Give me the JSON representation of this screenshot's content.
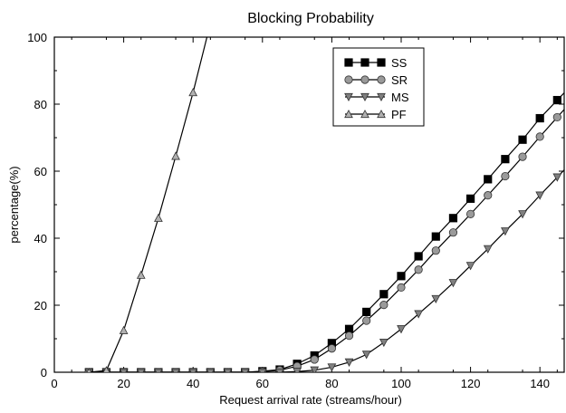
{
  "chart_data": {
    "type": "line",
    "title": "Blocking Probability",
    "xlabel": "Request arrival rate (streams/hour)",
    "ylabel": "percentage(%)",
    "xlim": [
      0,
      147
    ],
    "ylim": [
      0,
      100
    ],
    "xticks": [
      0,
      20,
      40,
      60,
      80,
      100,
      120,
      140
    ],
    "yticks": [
      0,
      20,
      40,
      60,
      80,
      100
    ],
    "grid": false,
    "legend_position": "top-center-right",
    "x": [
      10,
      15,
      20,
      25,
      30,
      35,
      40,
      45,
      50,
      55,
      60,
      65,
      70,
      75,
      80,
      85,
      90,
      95,
      100,
      105,
      110,
      115,
      120,
      125,
      130,
      135,
      140,
      145
    ],
    "series": [
      {
        "name": "SS",
        "marker": "square",
        "fill": "#000000",
        "values": [
          0,
          0,
          0,
          0,
          0,
          0,
          0,
          0,
          0,
          0,
          0.3,
          0.8,
          2.5,
          5,
          8.7,
          12.9,
          18,
          23.3,
          28.7,
          34.6,
          40.5,
          46,
          51.8,
          57.6,
          63.6,
          69.4,
          75.8,
          81.2
        ]
      },
      {
        "name": "SR",
        "marker": "circle",
        "fill": "#9a9a9a",
        "values": [
          0,
          0,
          0,
          0,
          0,
          0,
          0,
          0,
          0,
          0,
          0.2,
          0.6,
          1.8,
          3.8,
          7.1,
          10.9,
          15.4,
          20.1,
          25.3,
          30.6,
          36.3,
          41.7,
          47.2,
          52.8,
          58.5,
          64.3,
          70.3,
          76.1
        ]
      },
      {
        "name": "MS",
        "marker": "triangle-down",
        "fill": "#808080",
        "values": [
          0,
          0,
          0,
          0,
          0,
          0,
          0,
          0,
          0,
          0,
          0,
          0,
          0.2,
          0.6,
          1.5,
          3,
          5.3,
          8.9,
          12.9,
          17.4,
          21.9,
          26.7,
          31.8,
          36.8,
          42.1,
          47.2,
          52.8,
          58.2
        ]
      },
      {
        "name": "PF",
        "marker": "triangle-up",
        "fill": "#b0b0b0",
        "x": [
          10,
          15,
          20,
          25,
          30,
          35,
          40,
          44
        ],
        "values": [
          0,
          0.5,
          12.5,
          29,
          46,
          64.5,
          83.5,
          100
        ]
      }
    ]
  }
}
